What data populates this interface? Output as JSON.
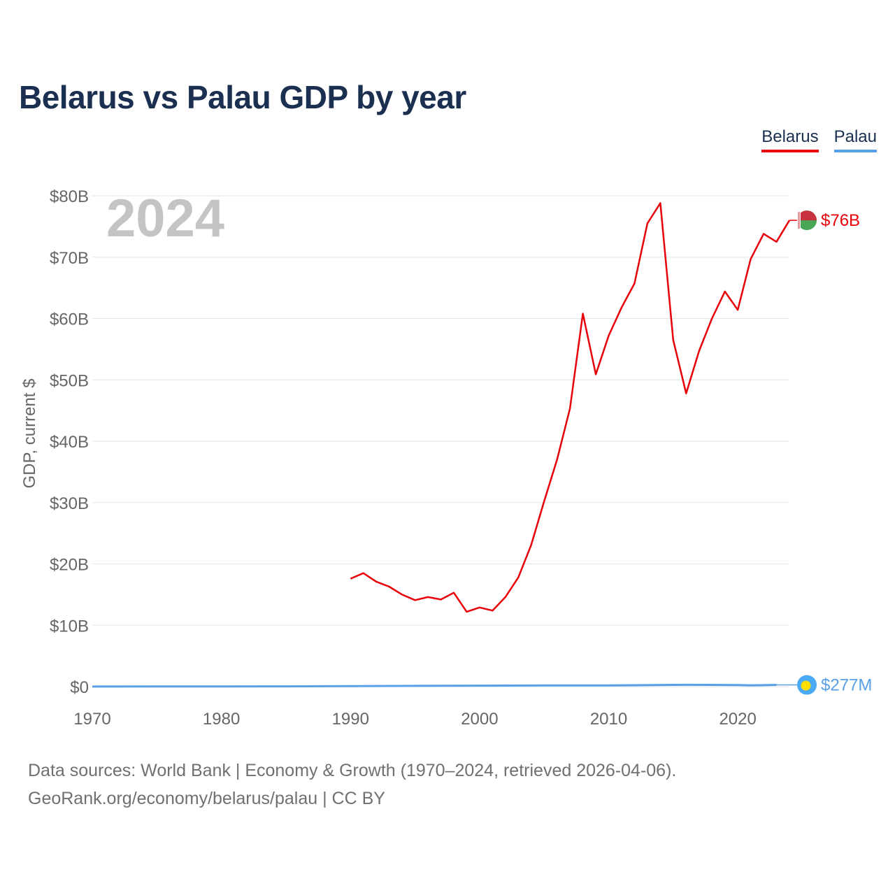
{
  "title": "Belarus vs Palau GDP by year",
  "legend": [
    {
      "label": "Belarus",
      "color": "#e8000a"
    },
    {
      "label": "Palau",
      "color": "#5aa0e6"
    }
  ],
  "year_watermark": "2024",
  "source_line1": "Data sources: World Bank | Economy & Growth (1970–2024, retrieved 2026-04-06).",
  "source_line2": "GeoRank.org/economy/belarus/palau | CC BY",
  "chart_data": {
    "type": "line",
    "title": "Belarus vs Palau GDP by year",
    "xlabel": "",
    "ylabel": "GDP, current $",
    "xlim": [
      1970,
      2024
    ],
    "ylim": [
      0,
      80
    ],
    "x_ticks": [
      1970,
      1980,
      1990,
      2000,
      2010,
      2020
    ],
    "y_ticks": [
      0,
      10,
      20,
      30,
      40,
      50,
      60,
      70,
      80
    ],
    "y_tick_labels": [
      "$0",
      "$10B",
      "$20B",
      "$30B",
      "$40B",
      "$50B",
      "$60B",
      "$70B",
      "$80B"
    ],
    "grid": true,
    "units": "billions USD",
    "series": [
      {
        "name": "Belarus",
        "color": "#e8000a",
        "end_label": "$76B",
        "x": [
          1990,
          1991,
          1992,
          1993,
          1994,
          1995,
          1996,
          1997,
          1998,
          1999,
          2000,
          2001,
          2002,
          2003,
          2004,
          2005,
          2006,
          2007,
          2008,
          2009,
          2010,
          2011,
          2012,
          2013,
          2014,
          2015,
          2016,
          2017,
          2018,
          2019,
          2020,
          2021,
          2022,
          2023,
          2024
        ],
        "values": [
          17.6,
          18.5,
          17.1,
          16.3,
          15.0,
          14.1,
          14.6,
          14.2,
          15.3,
          12.2,
          12.9,
          12.4,
          14.6,
          17.8,
          23.1,
          30.2,
          37.0,
          45.3,
          60.8,
          50.9,
          57.2,
          61.8,
          65.7,
          75.5,
          78.8,
          56.5,
          47.8,
          54.7,
          60.0,
          64.4,
          61.4,
          69.7,
          73.8,
          72.5,
          76.0
        ]
      },
      {
        "name": "Palau",
        "color": "#5aa0e6",
        "end_label": "$277M",
        "x": [
          1970,
          1975,
          1980,
          1985,
          1990,
          1995,
          2000,
          2005,
          2010,
          2015,
          2016,
          2020,
          2021,
          2022,
          2023
        ],
        "values": [
          0.01,
          0.02,
          0.03,
          0.05,
          0.08,
          0.12,
          0.16,
          0.19,
          0.19,
          0.29,
          0.3,
          0.26,
          0.22,
          0.24,
          0.28
        ]
      }
    ]
  }
}
